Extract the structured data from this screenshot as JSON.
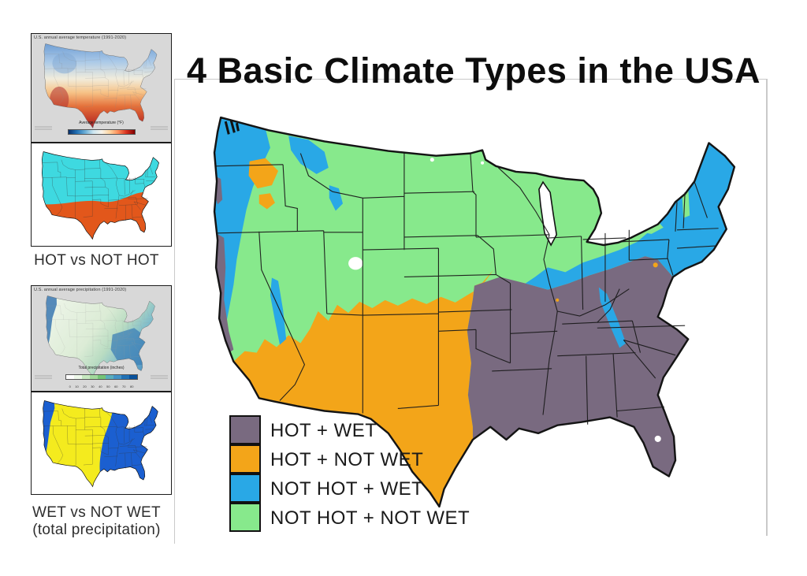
{
  "title": "4 Basic Climate Types in the USA",
  "colors": {
    "hot_wet": "#796a80",
    "hot_not_wet": "#f3a519",
    "not_hot_wet": "#29a8e6",
    "not_hot_not_wet": "#87e98c",
    "outline": "#141414",
    "water": "#ffffff"
  },
  "legend": {
    "items": [
      {
        "label": "HOT + WET",
        "color": "#796a80"
      },
      {
        "label": "HOT + NOT WET",
        "color": "#f3a519"
      },
      {
        "label": "NOT HOT + WET",
        "color": "#29a8e6"
      },
      {
        "label": "NOT HOT + NOT WET",
        "color": "#87e98c"
      }
    ]
  },
  "sidebar": {
    "temp_map": {
      "title": "U.S. annual average temperature (1991-2020)",
      "colorbar_label": "Average temperature (°F)"
    },
    "hot_map": {
      "caption": "HOT vs NOT HOT",
      "hot_color": "#e2571b",
      "not_hot_color": "#3ed9e0"
    },
    "precip_map": {
      "title": "U.S. annual average precipitation (1991-2020)",
      "colorbar_label": "Total precipitation (inches)",
      "ticks": [
        "0",
        "10",
        "20",
        "30",
        "40",
        "50",
        "60",
        "70",
        "80"
      ]
    },
    "wet_map": {
      "caption_line1": "WET vs NOT WET",
      "caption_line2": "(total precipitation)",
      "wet_color": "#1b5fd0",
      "not_wet_color": "#f4eb1e"
    }
  }
}
